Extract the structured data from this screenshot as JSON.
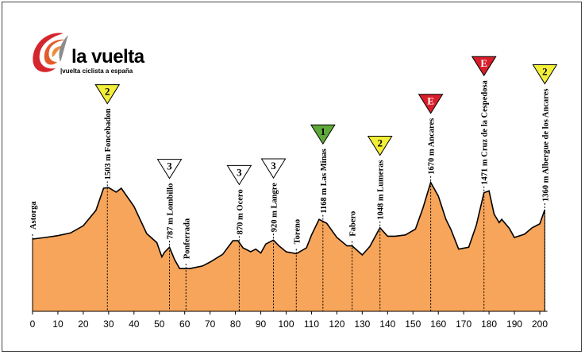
{
  "logo": {
    "brand": "la vuelta",
    "tagline": "|vuelta ciclista a españa"
  },
  "colors": {
    "profile_fill": "#f7a55a",
    "profile_stroke": "#000000",
    "cat_1": "#5fa83a",
    "cat_2": "#f2ee3a",
    "cat_3": "#ffffff",
    "cat_e": "#d81e2a",
    "logo_red": "#d4262c"
  },
  "chart_data": {
    "type": "area",
    "title": "",
    "xlabel": "",
    "ylabel": "",
    "xlim": [
      0,
      203
    ],
    "ylim": [
      300,
      1900
    ],
    "x_ticks": [
      0,
      10,
      20,
      30,
      40,
      50,
      60,
      70,
      80,
      90,
      100,
      110,
      120,
      130,
      140,
      150,
      160,
      170,
      180,
      190,
      200
    ],
    "grid": false,
    "profile": [
      [
        0,
        858
      ],
      [
        5,
        870
      ],
      [
        10,
        884
      ],
      [
        15,
        905
      ],
      [
        20,
        960
      ],
      [
        25,
        1080
      ],
      [
        28,
        1250
      ],
      [
        30,
        1255
      ],
      [
        33,
        1220
      ],
      [
        35,
        1250
      ],
      [
        40,
        1110
      ],
      [
        45,
        900
      ],
      [
        49,
        830
      ],
      [
        51,
        720
      ],
      [
        52,
        755
      ],
      [
        54,
        795
      ],
      [
        56,
        700
      ],
      [
        58,
        630
      ],
      [
        62,
        630
      ],
      [
        67,
        650
      ],
      [
        70,
        680
      ],
      [
        75,
        740
      ],
      [
        79,
        845
      ],
      [
        81,
        845
      ],
      [
        83,
        790
      ],
      [
        86,
        760
      ],
      [
        88,
        780
      ],
      [
        90,
        750
      ],
      [
        92,
        820
      ],
      [
        95,
        850
      ],
      [
        97,
        808
      ],
      [
        100,
        760
      ],
      [
        104,
        745
      ],
      [
        108,
        790
      ],
      [
        110,
        890
      ],
      [
        113,
        1010
      ],
      [
        116,
        980
      ],
      [
        120,
        870
      ],
      [
        124,
        805
      ],
      [
        126,
        805
      ],
      [
        130,
        735
      ],
      [
        133,
        800
      ],
      [
        137,
        945
      ],
      [
        140,
        880
      ],
      [
        143,
        880
      ],
      [
        147,
        890
      ],
      [
        151,
        935
      ],
      [
        154,
        1100
      ],
      [
        157,
        1295
      ],
      [
        160,
        1190
      ],
      [
        163,
        1010
      ],
      [
        165,
        930
      ],
      [
        168,
        780
      ],
      [
        172,
        795
      ],
      [
        175,
        965
      ],
      [
        178,
        1215
      ],
      [
        180,
        1230
      ],
      [
        182,
        1050
      ],
      [
        184,
        985
      ],
      [
        185,
        1010
      ],
      [
        188,
        940
      ],
      [
        190,
        870
      ],
      [
        194,
        895
      ],
      [
        197,
        945
      ],
      [
        200,
        975
      ],
      [
        202,
        1085
      ]
    ],
    "points": [
      {
        "x": 0,
        "label": "Astorga",
        "category": ""
      },
      {
        "x": 29.5,
        "label": "1503 m Foncebadon",
        "category": "2"
      },
      {
        "x": 54,
        "label": "787 m Lombillo",
        "category": "3"
      },
      {
        "x": 60.5,
        "label": "Ponferrada",
        "category": ""
      },
      {
        "x": 81.5,
        "label": "870 m Ocero",
        "category": "3"
      },
      {
        "x": 95,
        "label": "920 m Langre",
        "category": "3"
      },
      {
        "x": 104,
        "label": "Toreno",
        "category": ""
      },
      {
        "x": 114.5,
        "label": "1168 m Las Minas",
        "category": "1"
      },
      {
        "x": 126,
        "label": "Fabero",
        "category": ""
      },
      {
        "x": 137,
        "label": "1048 m Lumeras",
        "category": "2"
      },
      {
        "x": 157,
        "label": "1670 m Ancares",
        "category": "E"
      },
      {
        "x": 178,
        "label": "1471 m Cruz de la Cespedosa",
        "category": "E"
      },
      {
        "x": 202,
        "label": "1360 m Albergue de los Ancares",
        "category": "2"
      }
    ]
  }
}
